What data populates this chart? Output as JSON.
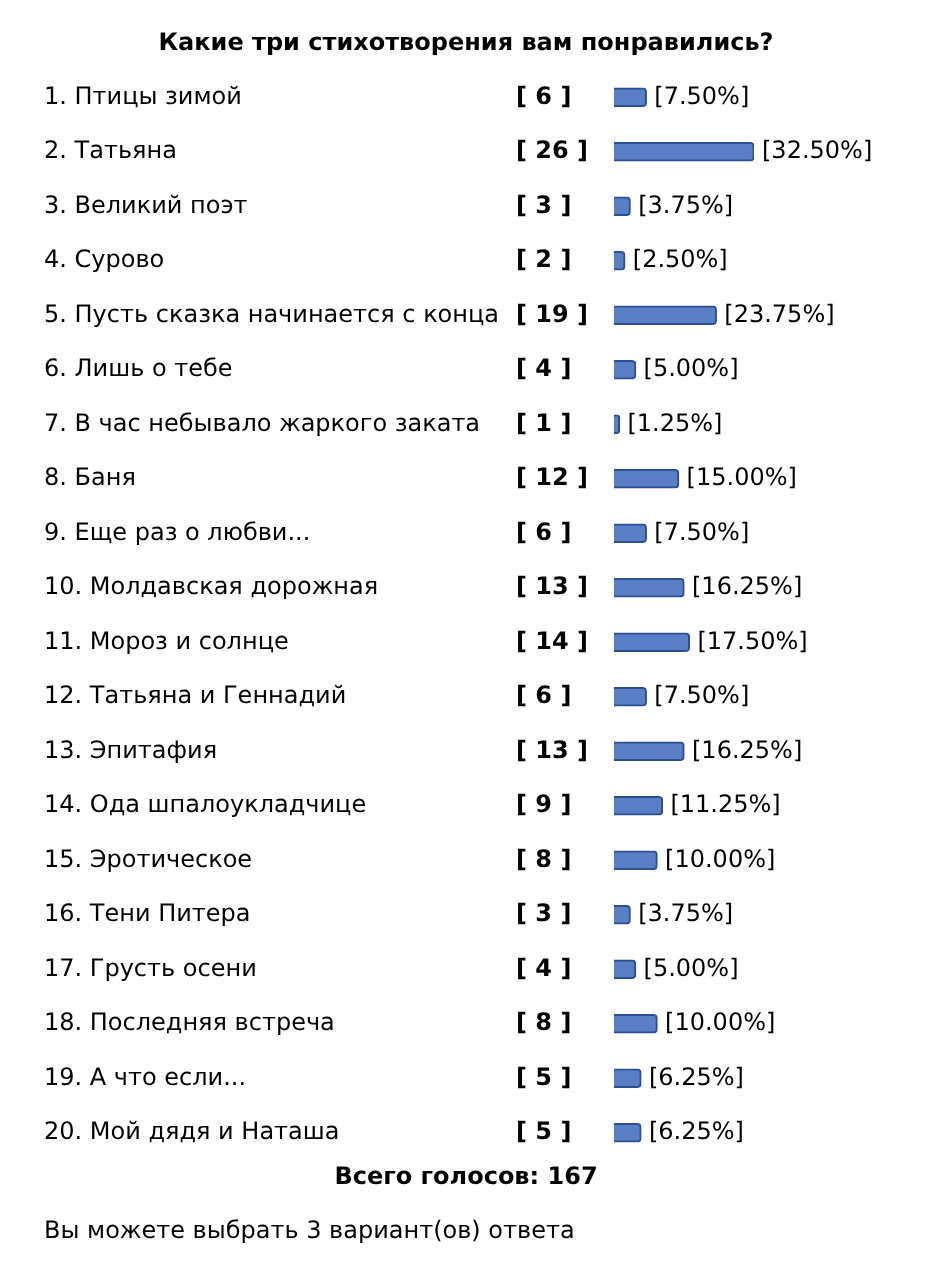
{
  "chart_data": {
    "type": "bar",
    "orientation": "horizontal",
    "title": "Какие три стихотворения вам понравились?",
    "categories": [
      "1. Птицы зимой",
      "2. Татьяна",
      "3. Великий поэт",
      "4. Сурово",
      "5. Пусть сказка начинается с конца",
      "6. Лишь о тебе",
      "7. В час небывало жаркого заката",
      "8. Баня",
      "9. Еще раз о любви...",
      "10. Молдавская дорожная",
      "11. Мороз и солнце",
      "12. Татьяна и Геннадий",
      "13. Эпитафия",
      "14. Ода шпалоукладчице",
      "15. Эротическое",
      "16. Тени Питера",
      "17. Грусть осени",
      "18. Последняя встреча",
      "19. А что если...",
      "20. Мой дядя и Наташа"
    ],
    "values": [
      7.5,
      32.5,
      3.75,
      2.5,
      23.75,
      5,
      1.25,
      15,
      7.5,
      16.25,
      17.5,
      7.5,
      16.25,
      11.25,
      10,
      3.75,
      5,
      10,
      6.25,
      6.25
    ],
    "color": "#5a7fc6",
    "value_labels": [
      "[7.50%]",
      "[32.50%]",
      "[3.75%]",
      "[2.50%]",
      "[23.75%]",
      "[5.00%]",
      "[1.25%]",
      "[15.00%]",
      "[7.50%]",
      "[16.25%]",
      "[17.50%]",
      "[7.50%]",
      "[16.25%]",
      "[11.25%]",
      "[10.00%]",
      "[3.75%]",
      "[5.00%]",
      "[10.00%]",
      "[6.25%]",
      "[6.25%]"
    ],
    "annotations": [
      "[ 6 ]",
      "[ 26 ]",
      "[ 3 ]",
      "[ 2 ]",
      "[ 19 ]",
      "[ 4 ]",
      "[ 1 ]",
      "[ 12 ]",
      "[ 6 ]",
      "[ 13 ]",
      "[ 14 ]",
      "[ 6 ]",
      "[ 13 ]",
      "[ 9 ]",
      "[ 8 ]",
      "[ 3 ]",
      "[ 4 ]",
      "[ 8 ]",
      "[ 5 ]",
      "[ 5 ]",
      "Всего голосов: 167",
      "Вы можете выбрать 3 вариант(ов) ответа"
    ]
  }
}
